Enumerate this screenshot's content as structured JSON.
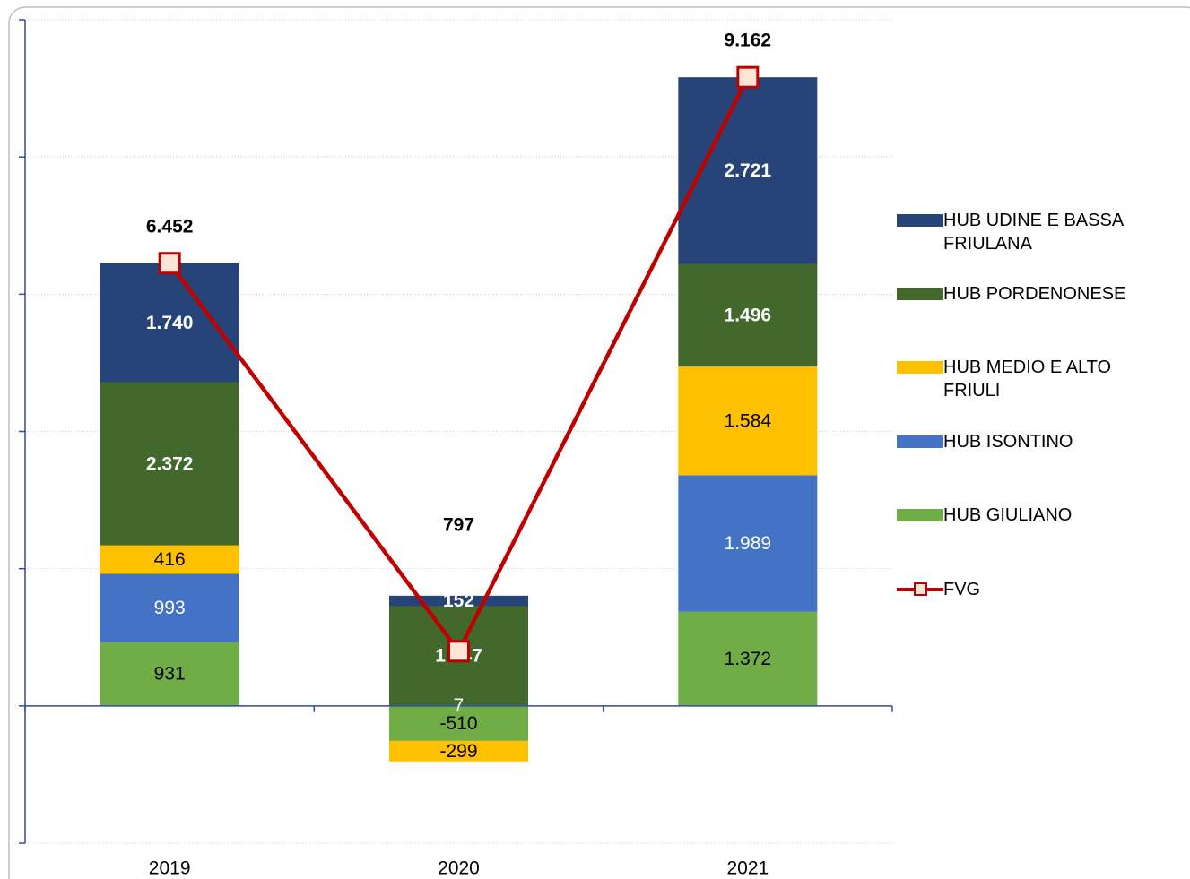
{
  "chart_data": {
    "type": "stacked_bar_line",
    "categories": [
      "2019",
      "2020",
      "2021"
    ],
    "ylim": [
      -2000,
      10000
    ],
    "yticks": [
      -2000,
      0,
      2000,
      4000,
      6000,
      8000,
      10000
    ],
    "grid": true,
    "series": [
      {
        "name": "HUB GIULIANO",
        "color": "#70ad47",
        "values": [
          931,
          -510,
          1372
        ],
        "value_labels": [
          "931",
          "-510",
          "1.372"
        ]
      },
      {
        "name": "HUB ISONTINO",
        "color": "#4472c4",
        "values": [
          993,
          7,
          1989
        ],
        "value_labels": [
          "993",
          "7",
          "1.989"
        ]
      },
      {
        "name": "HUB MEDIO E ALTO FRIULI",
        "color": "#ffc000",
        "values": [
          416,
          -299,
          1584
        ],
        "value_labels": [
          "416",
          "-299",
          "1.584"
        ]
      },
      {
        "name": "HUB PORDENONESE",
        "color": "#43682b",
        "values": [
          2372,
          1447,
          1496
        ],
        "value_labels": [
          "2.372",
          "1.447",
          "1.496"
        ]
      },
      {
        "name": "HUB UDINE E BASSA FRIULANA",
        "color": "#264478",
        "values": [
          1740,
          152,
          2721
        ],
        "value_labels": [
          "1.740",
          "152",
          "2.721"
        ]
      },
      {
        "name": "FVG",
        "type": "line",
        "color": "#c00000",
        "values": [
          6452,
          797,
          9162
        ],
        "value_labels": [
          "6.452",
          "797",
          "9.162"
        ]
      }
    ]
  }
}
